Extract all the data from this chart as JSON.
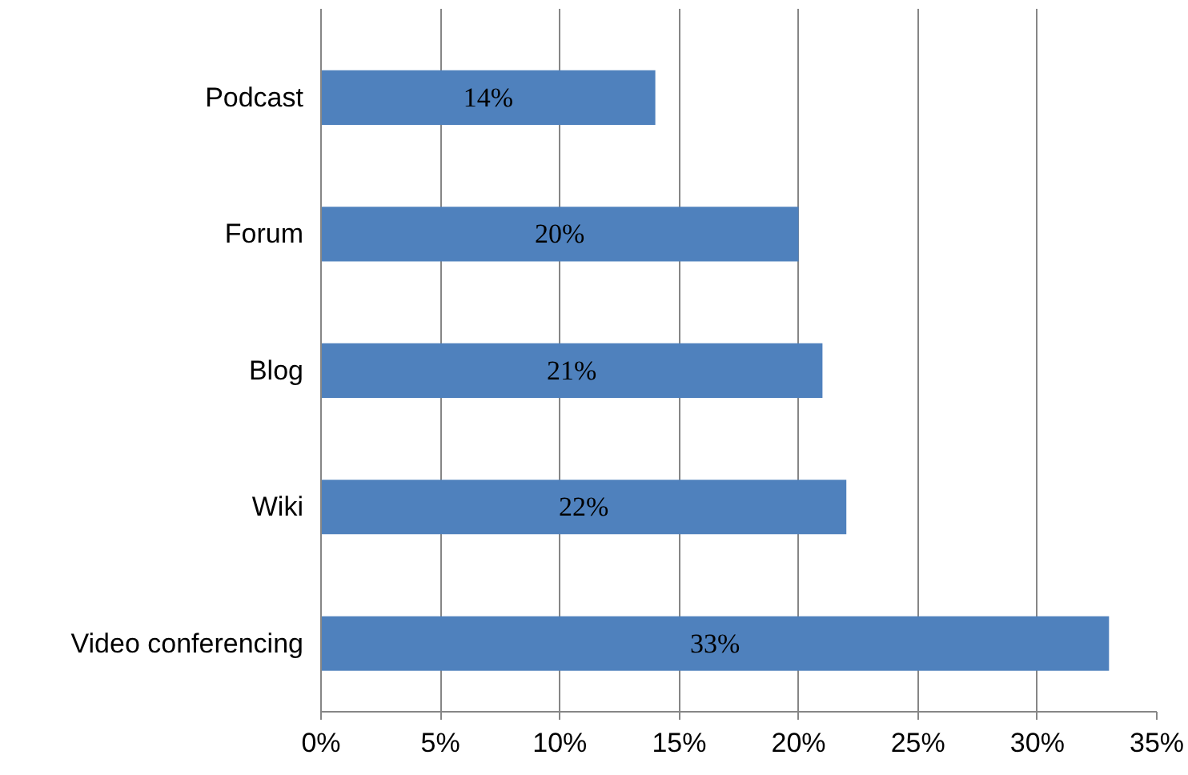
{
  "chart_data": {
    "type": "bar",
    "orientation": "horizontal",
    "categories": [
      "Podcast",
      "Forum",
      "Blog",
      "Wiki",
      "Video conferencing"
    ],
    "values": [
      14,
      20,
      21,
      22,
      33
    ],
    "value_labels": [
      "14%",
      "20%",
      "21%",
      "22%",
      "33%"
    ],
    "color": "#4f81bd",
    "xlim": [
      0,
      35
    ],
    "xticks": [
      {
        "value": 0,
        "label": "0%"
      },
      {
        "value": 5,
        "label": "5%"
      },
      {
        "value": 10,
        "label": "10%"
      },
      {
        "value": 15,
        "label": "15%"
      },
      {
        "value": 20,
        "label": "20%"
      },
      {
        "value": 25,
        "label": "25%"
      },
      {
        "value": 30,
        "label": "30%"
      },
      {
        "value": 35,
        "label": "35%"
      }
    ],
    "grid": "x"
  }
}
